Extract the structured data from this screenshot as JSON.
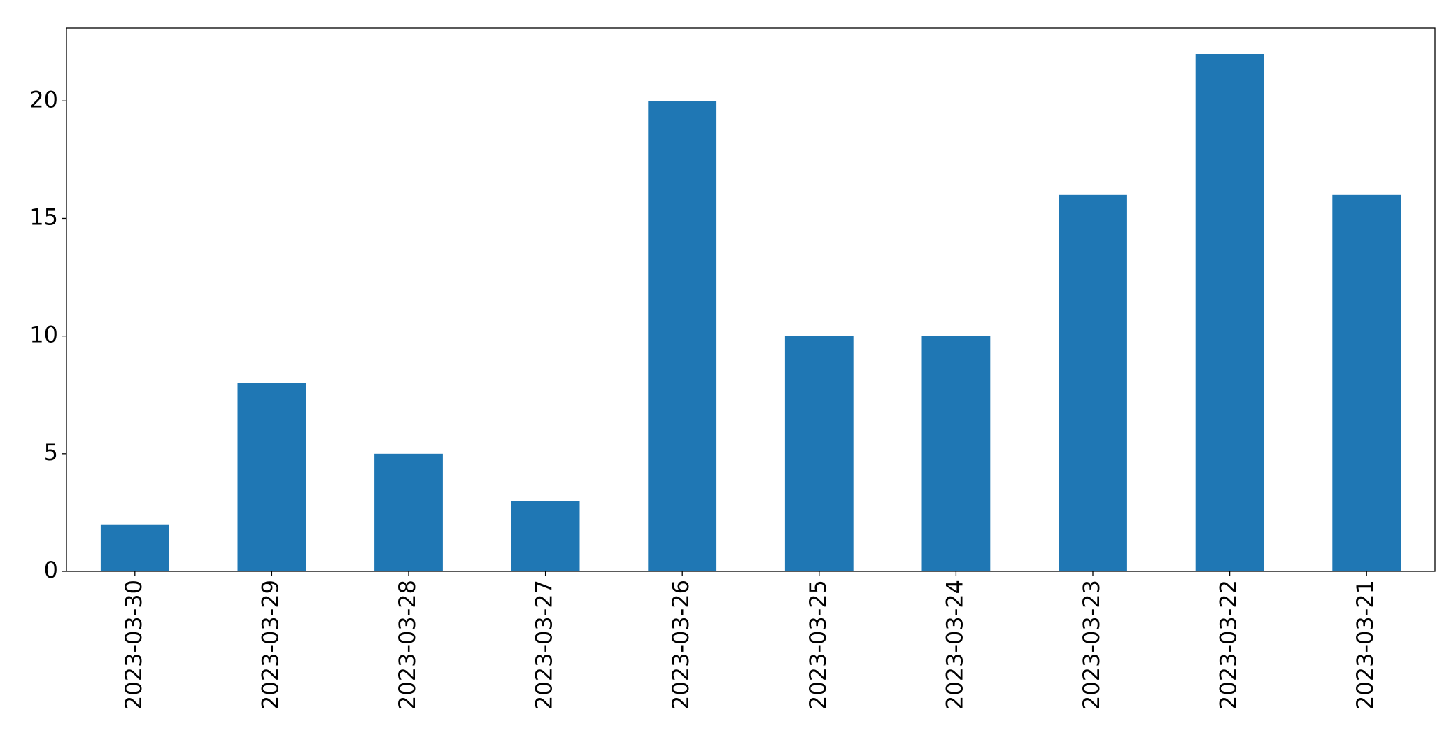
{
  "chart_data": {
    "type": "bar",
    "categories": [
      "2023-03-30",
      "2023-03-29",
      "2023-03-28",
      "2023-03-27",
      "2023-03-26",
      "2023-03-25",
      "2023-03-24",
      "2023-03-23",
      "2023-03-22",
      "2023-03-21"
    ],
    "values": [
      2,
      8,
      5,
      3,
      20,
      10,
      10,
      16,
      22,
      16
    ],
    "color": "#1f77b4",
    "ylim": [
      0,
      23.1
    ],
    "yticks": [
      0,
      5,
      10,
      15,
      20
    ],
    "grid": false
  }
}
